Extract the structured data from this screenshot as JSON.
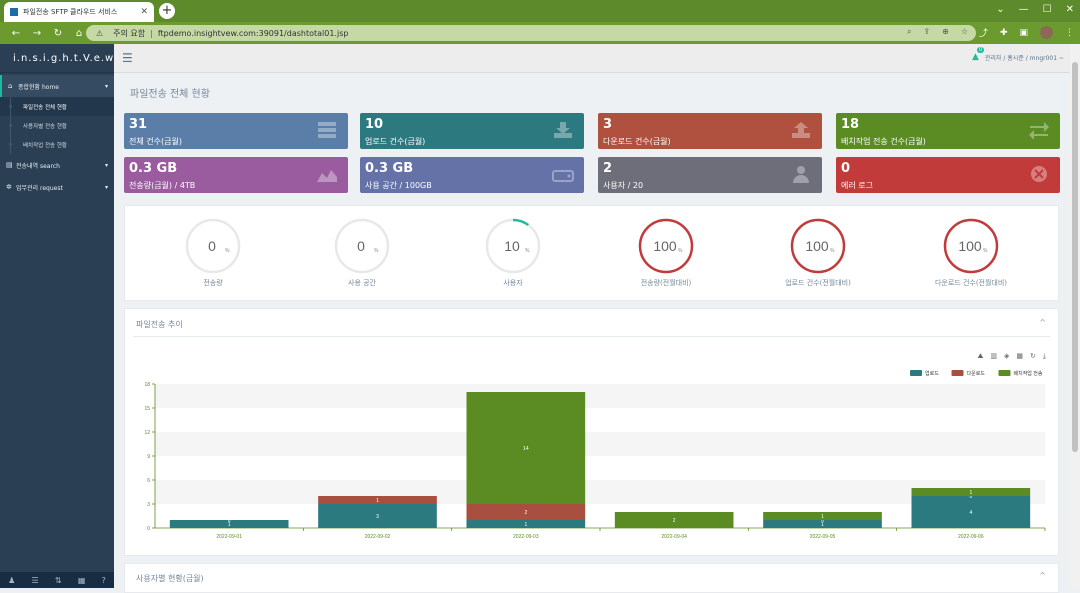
{
  "browser": {
    "tab_title": "파일전송 SFTP 클라우드 서비스",
    "tab_close": "✕",
    "new_tab": "+",
    "security": "주의 요함",
    "url": "ftpdemo.insightvew.com:39091/dashtotal01.jsp"
  },
  "sidebar": {
    "logo": "i.n.s.i.g.h.t.V.e.w",
    "menus": [
      {
        "label": "종합현황 home",
        "icon": "home-icon",
        "expanded": true,
        "subs": [
          "파일전송 전체 현황",
          "사용자별 전송 현황",
          "배치작업 전송 현황"
        ]
      },
      {
        "label": "전송내역 search",
        "icon": "table-icon"
      },
      {
        "label": "업무관리 request",
        "icon": "gears-icon"
      }
    ]
  },
  "header": {
    "notification_count": "0",
    "user": "관리자 / 홍시준 / mngr001 ~"
  },
  "page": {
    "title": "파일전송 전체 현황"
  },
  "stats": [
    {
      "value": "31",
      "label": "전체 건수(금월)",
      "color": "#5b7ea9",
      "icon": "server-icon"
    },
    {
      "value": "10",
      "label": "업로드 건수(금월)",
      "color": "#2c7a80",
      "icon": "download-icon"
    },
    {
      "value": "3",
      "label": "다운로드 건수(금월)",
      "color": "#b0503f",
      "icon": "upload-icon"
    },
    {
      "value": "18",
      "label": "배치작업 전송 건수(금월)",
      "color": "#5a8c23",
      "icon": "exchange-icon"
    },
    {
      "value": "0.3 GB",
      "label": "전송량(금월) / 4TB",
      "color": "#9a5c9e",
      "icon": "area-chart-icon"
    },
    {
      "value": "0.3 GB",
      "label": "사용 공간 / 100GB",
      "color": "#6472a8",
      "icon": "hdd-icon"
    },
    {
      "value": "2",
      "label": "사용자 / 20",
      "color": "#6e6e7a",
      "icon": "user-icon"
    },
    {
      "value": "0",
      "label": "에러 로그",
      "color": "#c23b3b",
      "icon": "times-circle-icon"
    }
  ],
  "gauges": [
    {
      "value": "0",
      "unit": "%",
      "label": "전송량",
      "fraction": 0,
      "color": "#e8e8e8"
    },
    {
      "value": "0",
      "unit": "%",
      "label": "사용 공간",
      "fraction": 0,
      "color": "#e8e8e8"
    },
    {
      "value": "10",
      "unit": "%",
      "label": "사용자",
      "fraction": 0.1,
      "color": "#26b99a"
    },
    {
      "value": "100",
      "unit": "%",
      "label": "전송량(전월대비)",
      "fraction": 1,
      "color": "#c23b3b"
    },
    {
      "value": "100",
      "unit": "%",
      "label": "업로드 건수(전월대비)",
      "fraction": 1,
      "color": "#c23b3b"
    },
    {
      "value": "100",
      "unit": "%",
      "label": "다운로드 건수(전월대비)",
      "fraction": 1,
      "color": "#c23b3b"
    }
  ],
  "chart_panel": {
    "title": "파일전송 추이",
    "collapse": "^"
  },
  "chart_data": {
    "type": "bar",
    "stacked": true,
    "categories": [
      "2022-09-01",
      "2022-09-02",
      "2022-09-03",
      "2022-09-04",
      "2022-09-05",
      "2022-09-06"
    ],
    "series": [
      {
        "name": "업로드",
        "color": "#2b7a80",
        "values": [
          1,
          3,
          1,
          0,
          1,
          4
        ]
      },
      {
        "name": "다운로드",
        "color": "#a94f3f",
        "values": [
          0,
          1,
          2,
          0,
          0,
          0
        ]
      },
      {
        "name": "배치작업 전송",
        "color": "#5a8c23",
        "values": [
          0,
          0,
          14,
          2,
          1,
          1
        ]
      }
    ],
    "ylim": [
      0,
      18
    ],
    "yticks": [
      0,
      3,
      6,
      9,
      12,
      15,
      18
    ],
    "legend": "top-right",
    "grid": true
  },
  "next_panel": {
    "title": "사용자별 현황(금월)",
    "collapse": "^"
  }
}
